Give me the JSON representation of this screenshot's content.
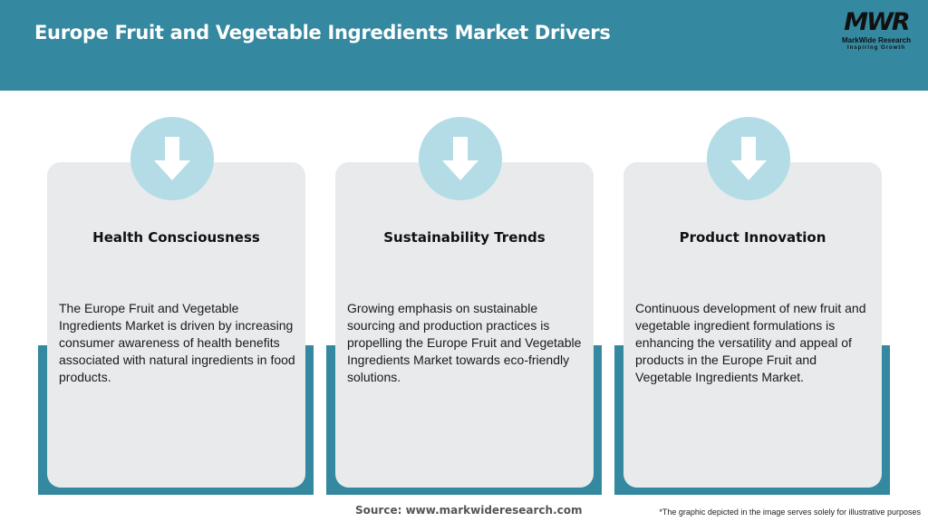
{
  "header": {
    "title": "Europe Fruit and Vegetable Ingredients Market Drivers",
    "logo": {
      "mark": "MWR",
      "name": "MarkWide Research",
      "tagline": "Inspiring Growth"
    }
  },
  "colors": {
    "header": "#34889f",
    "accent_block": "#34889f",
    "card": "#e8eaeb",
    "icon_circle": "#b3dce6"
  },
  "cards": [
    {
      "icon": "arrow-down-icon",
      "title": "Health Consciousness",
      "text": "The Europe Fruit and Vegetable Ingredients Market is driven by increasing consumer awareness of health benefits associated with natural ingredients in food products."
    },
    {
      "icon": "arrow-down-icon",
      "title": "Sustainability Trends",
      "text": "Growing emphasis on sustainable sourcing and production practices is propelling the Europe Fruit and Vegetable Ingredients Market towards eco-friendly solutions."
    },
    {
      "icon": "arrow-down-icon",
      "title": "Product Innovation",
      "text": "Continuous development of new fruit and vegetable ingredient formulations is enhancing the versatility and appeal of products in the Europe Fruit and Vegetable Ingredients Market."
    }
  ],
  "footer": {
    "source": "Source: www.markwideresearch.com",
    "note": "*The graphic depicted in the image serves solely for illustrative purposes"
  }
}
